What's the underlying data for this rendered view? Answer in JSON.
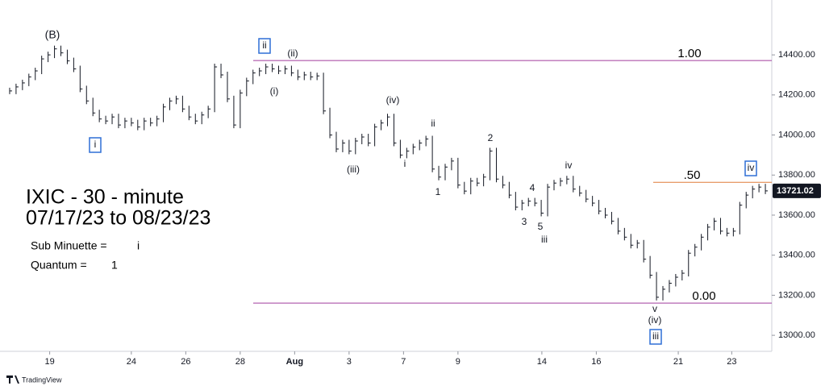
{
  "chart_data": {
    "type": "ohlc",
    "title": "IXIC  - 30 - minute",
    "subtitle": "07/17/23 to 08/23/23",
    "legend_items": [
      {
        "label": "Sub Minuette  =",
        "symbol": "i",
        "color": "#2f6fd6"
      },
      {
        "label": "Quantum  =",
        "symbol": "1",
        "color": "#b3163f"
      }
    ],
    "color": "#131722",
    "values": [
      14220,
      14240,
      14260,
      14290,
      14320,
      14380,
      14400,
      14430,
      14410,
      14370,
      14330,
      14230,
      14170,
      14110,
      14080,
      14070,
      14090,
      14050,
      14070,
      14060,
      14040,
      14070,
      14060,
      14080,
      14140,
      14170,
      14180,
      14130,
      14090,
      14070,
      14100,
      14130,
      14340,
      14300,
      14180,
      14050,
      14210,
      14270,
      14310,
      14320,
      14340,
      14330,
      14320,
      14330,
      14310,
      14290,
      14300,
      14290,
      14295,
      14120,
      14000,
      13930,
      13960,
      13920,
      13970,
      13990,
      13960,
      14040,
      14060,
      14090,
      13960,
      13900,
      13920,
      13940,
      13960,
      13980,
      13830,
      13790,
      13840,
      13870,
      13750,
      13720,
      13770,
      13760,
      13790,
      13920,
      13780,
      13750,
      13700,
      13640,
      13660,
      13670,
      13660,
      13610,
      13740,
      13760,
      13770,
      13780,
      13730,
      13710,
      13680,
      13660,
      13620,
      13600,
      13570,
      13520,
      13490,
      13450,
      13460,
      13380,
      13300,
      13190,
      13230,
      13260,
      13290,
      13310,
      13410,
      13440,
      13490,
      13540,
      13570,
      13520,
      13510,
      13520,
      13650,
      13700,
      13730,
      13740,
      13721
    ],
    "xlim": [
      -0.5,
      119
    ],
    "xticks": [
      {
        "value": 6.25,
        "label": "19"
      },
      {
        "value": 19,
        "label": "24"
      },
      {
        "value": 27.5,
        "label": "26"
      },
      {
        "value": 36,
        "label": "28"
      },
      {
        "value": 44.5,
        "label": "Aug"
      },
      {
        "value": 53,
        "label": "3"
      },
      {
        "value": 61.5,
        "label": "7"
      },
      {
        "value": 70,
        "label": "9"
      },
      {
        "value": 83.1,
        "label": "14"
      },
      {
        "value": 91.6,
        "label": "16"
      },
      {
        "value": 104.4,
        "label": "21"
      },
      {
        "value": 112.75,
        "label": "23"
      }
    ],
    "ylim": [
      12920,
      14674
    ],
    "yticks": [
      {
        "value": 13000,
        "label": "13000.00"
      },
      {
        "value": 13200,
        "label": "13200.00"
      },
      {
        "value": 13400,
        "label": "13400.00"
      },
      {
        "value": 13600,
        "label": "13600.00"
      },
      {
        "value": 13800,
        "label": "13800.00"
      },
      {
        "value": 14000,
        "label": "14000.00"
      },
      {
        "value": 14200,
        "label": "14200.00"
      },
      {
        "value": 14400,
        "label": "14400.00"
      }
    ],
    "last_price": {
      "value": 13721.02,
      "label": "13721.02"
    },
    "levels": [
      {
        "label": "1.00",
        "value": 14372,
        "color": "#a03c9e"
      },
      {
        "label": ".50",
        "value": 13764,
        "color": "#e07b39"
      },
      {
        "label": "0.00",
        "value": 13161,
        "color": "#a03c9e"
      }
    ],
    "annotations": [
      {
        "text": "(B)",
        "color": "#000000",
        "boxed": false
      },
      {
        "text": "ii",
        "color": "#2f6fd6",
        "boxed": true
      },
      {
        "text": "(ii)",
        "color": "#2f6fd6",
        "boxed": false
      },
      {
        "text": "(i)",
        "color": "#2f6fd6",
        "boxed": false
      },
      {
        "text": "i",
        "color": "#2f6fd6",
        "boxed": true
      },
      {
        "text": "(iii)",
        "color": "#2f6fd6",
        "boxed": false
      },
      {
        "text": "(iv)",
        "color": "#2f6fd6",
        "boxed": false
      },
      {
        "text": "ii",
        "color": "#2f6fd6",
        "boxed": false
      },
      {
        "text": "i",
        "color": "#2f6fd6",
        "boxed": false
      },
      {
        "text": "1",
        "color": "#b3163f",
        "boxed": false
      },
      {
        "text": "2",
        "color": "#b3163f",
        "boxed": false
      },
      {
        "text": "3",
        "color": "#b3163f",
        "boxed": false
      },
      {
        "text": "4",
        "color": "#b3163f",
        "boxed": false
      },
      {
        "text": "5",
        "color": "#b3163f",
        "boxed": false
      },
      {
        "text": "iii",
        "color": "#2f6fd6",
        "boxed": false
      },
      {
        "text": "iv",
        "color": "#2f6fd6",
        "boxed": false
      },
      {
        "text": "v",
        "color": "#2f6fd6",
        "boxed": false
      },
      {
        "text": "(iv)",
        "color": "#2f6fd6",
        "boxed": false
      },
      {
        "text": "iii",
        "color": "#2f6fd6",
        "boxed": true
      },
      {
        "text": "iv",
        "color": "#2f6fd6",
        "boxed": true
      }
    ],
    "watermark": "TradingView"
  }
}
